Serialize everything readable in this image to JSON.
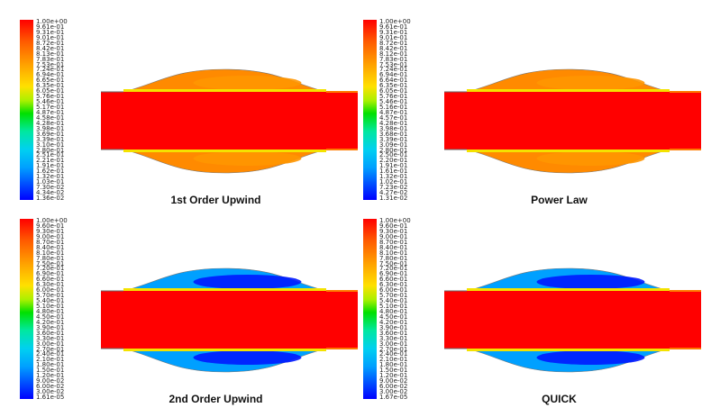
{
  "chart_data": [
    {
      "type": "heatmap",
      "title": "1st Order Upwind",
      "colorbar_range": [
        0.0136,
        1.0
      ],
      "colorbar_ticks": [
        "1.00e+00",
        "9.61e-01",
        "9.31e-01",
        "9.01e-01",
        "8.72e-01",
        "8.42e-01",
        "8.13e-01",
        "7.83e-01",
        "7.53e-01",
        "7.24e-01",
        "6.94e-01",
        "6.65e-01",
        "6.35e-01",
        "6.05e-01",
        "5.76e-01",
        "5.46e-01",
        "5.17e-01",
        "4.87e-01",
        "4.58e-01",
        "4.28e-01",
        "3.98e-01",
        "3.69e-01",
        "3.39e-01",
        "3.10e-01",
        "2.80e-01",
        "2.51e-01",
        "2.21e-01",
        "1.91e-01",
        "1.62e-01",
        "1.32e-01",
        "1.03e-01",
        "7.30e-02",
        "4.34e-02",
        "1.36e-02"
      ],
      "field": {
        "jet_value": 1.0,
        "bulge_value": 0.8,
        "bulge_inner_value": 0.78
      }
    },
    {
      "type": "heatmap",
      "title": "Power Law",
      "colorbar_range": [
        0.0131,
        1.0
      ],
      "colorbar_ticks": [
        "1.00e+00",
        "9.61e-01",
        "9.31e-01",
        "9.01e-01",
        "8.72e-01",
        "8.42e-01",
        "8.12e-01",
        "7.83e-01",
        "7.53e-01",
        "7.24e-01",
        "6.94e-01",
        "6.64e-01",
        "6.35e-01",
        "6.05e-01",
        "5.76e-01",
        "5.46e-01",
        "5.16e-01",
        "4.87e-01",
        "4.57e-01",
        "4.28e-01",
        "3.98e-01",
        "3.68e-01",
        "3.39e-01",
        "3.09e-01",
        "2.80e-01",
        "2.50e-01",
        "2.20e-01",
        "1.91e-01",
        "1.61e-01",
        "1.32e-01",
        "1.02e-01",
        "7.23e-02",
        "4.27e-02",
        "1.31e-02"
      ],
      "field": {
        "jet_value": 1.0,
        "bulge_value": 0.8,
        "bulge_inner_value": 0.78
      }
    },
    {
      "type": "heatmap",
      "title": "2nd Order Upwind",
      "colorbar_range": [
        1.61e-05,
        1.0
      ],
      "colorbar_ticks": [
        "1.00e+00",
        "9.60e-01",
        "9.30e-01",
        "9.00e-01",
        "8.70e-01",
        "8.40e-01",
        "8.10e-01",
        "7.80e-01",
        "7.50e-01",
        "7.20e-01",
        "6.90e-01",
        "6.60e-01",
        "6.30e-01",
        "6.00e-01",
        "5.70e-01",
        "5.40e-01",
        "5.10e-01",
        "4.80e-01",
        "4.50e-01",
        "4.20e-01",
        "3.90e-01",
        "3.60e-01",
        "3.30e-01",
        "3.00e-01",
        "2.70e-01",
        "2.40e-01",
        "2.10e-01",
        "1.80e-01",
        "1.50e-01",
        "1.20e-01",
        "9.00e-02",
        "6.00e-02",
        "3.00e-02",
        "1.61e-05"
      ],
      "field": {
        "jet_value": 1.0,
        "bulge_value": 0.2,
        "bulge_inner_value": 0.03
      }
    },
    {
      "type": "heatmap",
      "title": "QUICK",
      "colorbar_range": [
        1.67e-05,
        1.0
      ],
      "colorbar_ticks": [
        "1.00e+00",
        "9.60e-01",
        "9.30e-01",
        "9.00e-01",
        "8.70e-01",
        "8.40e-01",
        "8.10e-01",
        "7.80e-01",
        "7.50e-01",
        "7.20e-01",
        "6.90e-01",
        "6.60e-01",
        "6.30e-01",
        "6.00e-01",
        "5.70e-01",
        "5.40e-01",
        "5.10e-01",
        "4.80e-01",
        "4.50e-01",
        "4.20e-01",
        "3.90e-01",
        "3.60e-01",
        "3.30e-01",
        "3.00e-01",
        "2.70e-01",
        "2.40e-01",
        "2.10e-01",
        "1.80e-01",
        "1.50e-01",
        "1.20e-01",
        "9.00e-02",
        "6.00e-02",
        "3.00e-02",
        "1.67e-05"
      ],
      "field": {
        "jet_value": 1.0,
        "bulge_value": 0.2,
        "bulge_inner_value": 0.03
      }
    }
  ]
}
